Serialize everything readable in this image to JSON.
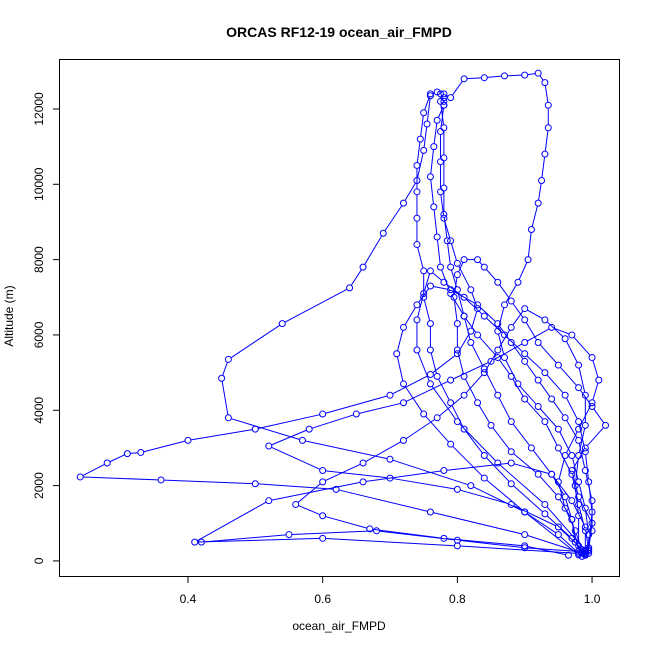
{
  "chart_data": {
    "type": "line",
    "title": "ORCAS RF12-19 ocean_air_FMPD",
    "xlabel": "ocean_air_FMPD",
    "ylabel": "Altitude (m)",
    "xlim": [
      0.21,
      1.04
    ],
    "ylim": [
      -400,
      13300
    ],
    "xticks": [
      0.4,
      0.6,
      0.8,
      1.0
    ],
    "xtick_labels": [
      "0.4",
      "0.6",
      "0.8",
      "1.0"
    ],
    "yticks": [
      0,
      2000,
      4000,
      6000,
      8000,
      10000,
      12000
    ],
    "ytick_labels": [
      "0",
      "2000",
      "4000",
      "6000",
      "8000",
      "10000",
      "12000"
    ],
    "grid": false,
    "marker": "open-circle",
    "color": "#0000ff",
    "series": [
      {
        "points": [
          [
            0.99,
            150
          ],
          [
            0.97,
            600
          ],
          [
            0.93,
            1250
          ],
          [
            0.88,
            2050
          ],
          [
            0.84,
            2800
          ],
          [
            0.81,
            3500
          ],
          [
            0.79,
            4200
          ],
          [
            0.77,
            4900
          ],
          [
            0.76,
            5600
          ],
          [
            0.76,
            6300
          ],
          [
            0.75,
            7000
          ],
          [
            0.75,
            7700
          ],
          [
            0.74,
            8400
          ],
          [
            0.74,
            9100
          ],
          [
            0.74,
            9800
          ],
          [
            0.74,
            10500
          ],
          [
            0.745,
            11200
          ],
          [
            0.75,
            11900
          ],
          [
            0.76,
            12400
          ],
          [
            0.77,
            12450
          ],
          [
            0.775,
            12400
          ],
          [
            0.78,
            12200
          ]
        ]
      },
      {
        "points": [
          [
            0.78,
            12300
          ],
          [
            0.78,
            12100
          ],
          [
            0.77,
            11700
          ],
          [
            0.765,
            11000
          ],
          [
            0.76,
            10200
          ],
          [
            0.765,
            9400
          ],
          [
            0.77,
            8600
          ],
          [
            0.775,
            7800
          ],
          [
            0.79,
            7100
          ],
          [
            0.81,
            6500
          ],
          [
            0.83,
            6000
          ],
          [
            0.86,
            5400
          ],
          [
            0.88,
            4900
          ],
          [
            0.9,
            4300
          ],
          [
            0.93,
            3700
          ],
          [
            0.95,
            3000
          ],
          [
            0.97,
            2300
          ],
          [
            0.98,
            1500
          ],
          [
            0.99,
            800
          ],
          [
            0.99,
            250
          ]
        ]
      },
      {
        "points": [
          [
            0.985,
            120
          ],
          [
            0.95,
            700
          ],
          [
            0.9,
            1300
          ],
          [
            0.82,
            2000
          ],
          [
            0.7,
            2700
          ],
          [
            0.57,
            3200
          ],
          [
            0.46,
            3800
          ],
          [
            0.45,
            4850
          ],
          [
            0.46,
            5350
          ],
          [
            0.54,
            6300
          ],
          [
            0.64,
            7250
          ],
          [
            0.66,
            7800
          ],
          [
            0.69,
            8700
          ],
          [
            0.72,
            9500
          ],
          [
            0.74,
            10100
          ],
          [
            0.75,
            10900
          ],
          [
            0.755,
            11600
          ],
          [
            0.76,
            12350
          ]
        ]
      },
      {
        "points": [
          [
            0.78,
            12400
          ],
          [
            0.79,
            12300
          ],
          [
            0.81,
            12800
          ],
          [
            0.84,
            12830
          ],
          [
            0.87,
            12880
          ],
          [
            0.9,
            12900
          ],
          [
            0.92,
            12950
          ],
          [
            0.93,
            12700
          ],
          [
            0.935,
            12100
          ],
          [
            0.935,
            11500
          ],
          [
            0.93,
            10800
          ],
          [
            0.925,
            10100
          ],
          [
            0.92,
            9500
          ],
          [
            0.91,
            8800
          ],
          [
            0.905,
            8000
          ],
          [
            0.89,
            7400
          ],
          [
            0.87,
            6800
          ],
          [
            0.86,
            6100
          ],
          [
            0.87,
            5400
          ],
          [
            0.89,
            4700
          ],
          [
            0.92,
            4100
          ],
          [
            0.95,
            3500
          ],
          [
            0.97,
            2800
          ],
          [
            0.98,
            2100
          ],
          [
            0.99,
            1400
          ],
          [
            0.995,
            700
          ],
          [
            0.995,
            200
          ]
        ]
      },
      {
        "points": [
          [
            0.99,
            180
          ],
          [
            0.9,
            700
          ],
          [
            0.76,
            1300
          ],
          [
            0.62,
            1900
          ],
          [
            0.5,
            2050
          ],
          [
            0.36,
            2150
          ],
          [
            0.24,
            2230
          ],
          [
            0.28,
            2600
          ],
          [
            0.31,
            2850
          ],
          [
            0.33,
            2880
          ],
          [
            0.4,
            3200
          ],
          [
            0.5,
            3500
          ],
          [
            0.6,
            3900
          ],
          [
            0.7,
            4400
          ],
          [
            0.76,
            4950
          ],
          [
            0.8,
            5500
          ],
          [
            0.82,
            6100
          ],
          [
            0.83,
            6700
          ],
          [
            0.82,
            7200
          ],
          [
            0.8,
            7900
          ],
          [
            0.79,
            8500
          ],
          [
            0.78,
            9100
          ],
          [
            0.775,
            9800
          ],
          [
            0.775,
            10600
          ],
          [
            0.775,
            11400
          ],
          [
            0.78,
            12100
          ]
        ]
      },
      {
        "points": [
          [
            0.42,
            500
          ],
          [
            0.55,
            700
          ],
          [
            0.68,
            800
          ],
          [
            0.8,
            550
          ],
          [
            0.9,
            350
          ],
          [
            0.98,
            250
          ],
          [
            0.97,
            1100
          ],
          [
            0.95,
            1700
          ],
          [
            0.92,
            2300
          ],
          [
            0.88,
            2900
          ],
          [
            0.85,
            3600
          ],
          [
            0.83,
            4200
          ],
          [
            0.81,
            4900
          ],
          [
            0.8,
            5600
          ],
          [
            0.8,
            6300
          ],
          [
            0.795,
            7000
          ],
          [
            0.8,
            7600
          ],
          [
            0.81,
            8000
          ],
          [
            0.83,
            8000
          ],
          [
            0.84,
            7800
          ],
          [
            0.86,
            7400
          ],
          [
            0.88,
            6900
          ],
          [
            0.9,
            6400
          ],
          [
            0.92,
            5800
          ],
          [
            0.95,
            5200
          ],
          [
            0.98,
            4600
          ],
          [
            1.0,
            4100
          ],
          [
            1.02,
            3600
          ],
          [
            0.99,
            3000
          ],
          [
            0.97,
            2400
          ],
          [
            0.98,
            1700
          ],
          [
            1.0,
            1000
          ],
          [
            0.995,
            300
          ]
        ]
      },
      {
        "points": [
          [
            0.98,
            200
          ],
          [
            0.8,
            400
          ],
          [
            0.6,
            600
          ],
          [
            0.41,
            500
          ],
          [
            0.52,
            1600
          ],
          [
            0.66,
            2100
          ],
          [
            0.78,
            2400
          ],
          [
            0.88,
            2600
          ],
          [
            0.94,
            2300
          ],
          [
            0.96,
            1700
          ],
          [
            0.97,
            1100
          ],
          [
            0.975,
            500
          ],
          [
            0.985,
            220
          ]
        ]
      },
      {
        "points": [
          [
            0.99,
            240
          ],
          [
            0.95,
            900
          ],
          [
            0.88,
            1500
          ],
          [
            0.8,
            1900
          ],
          [
            0.7,
            2200
          ],
          [
            0.6,
            2400
          ],
          [
            0.52,
            3050
          ],
          [
            0.58,
            3500
          ],
          [
            0.65,
            3900
          ],
          [
            0.72,
            4200
          ],
          [
            0.79,
            4800
          ],
          [
            0.85,
            5300
          ],
          [
            0.9,
            5800
          ],
          [
            0.94,
            6200
          ],
          [
            0.97,
            6000
          ],
          [
            1.0,
            5400
          ],
          [
            1.01,
            4800
          ],
          [
            1.0,
            4200
          ],
          [
            0.98,
            3500
          ],
          [
            0.96,
            2800
          ],
          [
            0.95,
            2100
          ],
          [
            0.96,
            1400
          ],
          [
            0.975,
            800
          ],
          [
            0.985,
            300
          ]
        ]
      },
      {
        "points": [
          [
            0.99,
            280
          ],
          [
            0.93,
            1500
          ],
          [
            0.86,
            2600
          ],
          [
            0.8,
            3700
          ],
          [
            0.76,
            4700
          ],
          [
            0.74,
            5600
          ],
          [
            0.74,
            6400
          ],
          [
            0.75,
            7100
          ],
          [
            0.76,
            7700
          ],
          [
            0.78,
            7400
          ],
          [
            0.81,
            7000
          ],
          [
            0.84,
            6500
          ],
          [
            0.87,
            6000
          ],
          [
            0.9,
            5500
          ],
          [
            0.93,
            5000
          ],
          [
            0.96,
            4400
          ],
          [
            0.98,
            3700
          ],
          [
            0.99,
            2900
          ],
          [
            0.995,
            2100
          ],
          [
            1.0,
            1300
          ],
          [
            0.995,
            350
          ]
        ]
      },
      {
        "points": [
          [
            0.965,
            150
          ],
          [
            0.9,
            400
          ],
          [
            0.78,
            600
          ],
          [
            0.67,
            850
          ],
          [
            0.6,
            1200
          ],
          [
            0.56,
            1500
          ],
          [
            0.6,
            2100
          ],
          [
            0.66,
            2600
          ],
          [
            0.72,
            3200
          ],
          [
            0.77,
            3800
          ],
          [
            0.81,
            4400
          ],
          [
            0.84,
            5000
          ],
          [
            0.86,
            5600
          ],
          [
            0.88,
            6200
          ],
          [
            0.9,
            6700
          ],
          [
            0.93,
            6400
          ],
          [
            0.96,
            5900
          ],
          [
            0.98,
            5200
          ],
          [
            0.99,
            4400
          ],
          [
            0.99,
            3600
          ],
          [
            0.98,
            2800
          ],
          [
            0.975,
            2000
          ],
          [
            0.98,
            1200
          ],
          [
            0.98,
            400
          ]
        ]
      },
      {
        "points": [
          [
            0.98,
            160
          ],
          [
            0.9,
            1300
          ],
          [
            0.84,
            2200
          ],
          [
            0.79,
            3100
          ],
          [
            0.75,
            3900
          ],
          [
            0.72,
            4700
          ],
          [
            0.71,
            5500
          ],
          [
            0.72,
            6200
          ],
          [
            0.74,
            6800
          ],
          [
            0.76,
            7300
          ],
          [
            0.79,
            7200
          ],
          [
            0.83,
            6800
          ],
          [
            0.86,
            6300
          ],
          [
            0.88,
            5800
          ],
          [
            0.9,
            5300
          ],
          [
            0.92,
            4800
          ],
          [
            0.94,
            4300
          ],
          [
            0.96,
            3800
          ],
          [
            0.98,
            3200
          ],
          [
            0.99,
            2400
          ],
          [
            1.0,
            1600
          ],
          [
            1.0,
            800
          ],
          [
            0.99,
            200
          ]
        ]
      },
      {
        "points": [
          [
            0.995,
            260
          ],
          [
            0.99,
            900
          ],
          [
            0.97,
            1600
          ],
          [
            0.94,
            2300
          ],
          [
            0.91,
            3000
          ],
          [
            0.88,
            3700
          ],
          [
            0.86,
            4400
          ],
          [
            0.84,
            5100
          ],
          [
            0.82,
            5800
          ],
          [
            0.81,
            6500
          ],
          [
            0.8,
            7200
          ],
          [
            0.79,
            7800
          ],
          [
            0.785,
            8500
          ],
          [
            0.78,
            9200
          ],
          [
            0.78,
            9900
          ],
          [
            0.78,
            10700
          ],
          [
            0.78,
            11500
          ],
          [
            0.775,
            12200
          ]
        ]
      }
    ]
  }
}
